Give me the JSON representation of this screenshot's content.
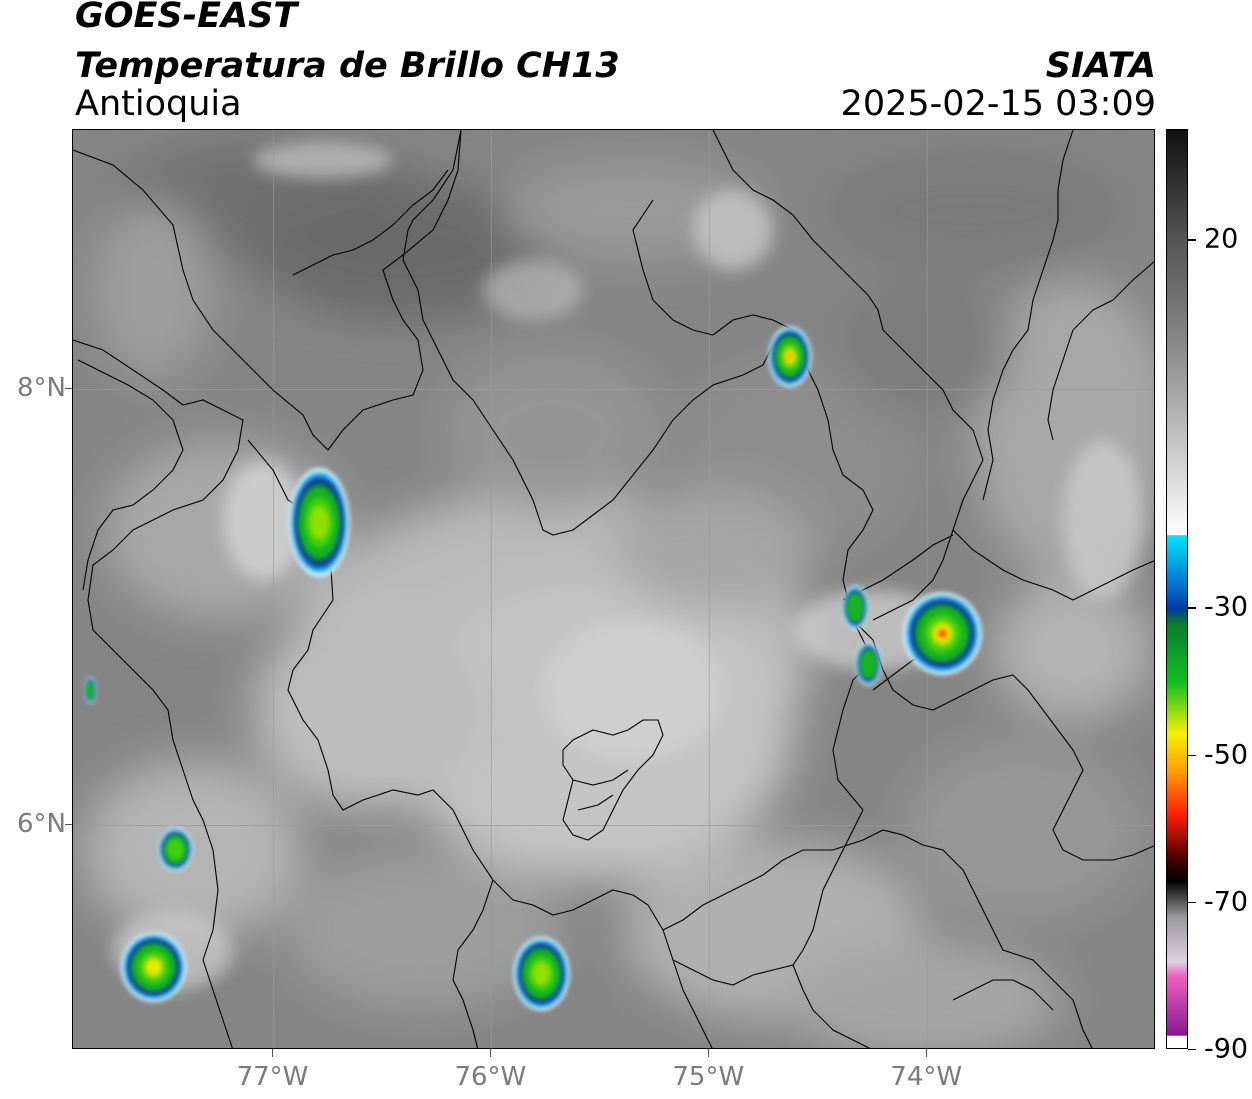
{
  "header": {
    "satellite": "GOES-EAST",
    "product": "Temperatura de Brillo CH13",
    "region": "Antioquia",
    "organization": "SIATA",
    "datetime": "2025-02-15 03:09"
  },
  "map": {
    "lat_labels": [
      {
        "id": "8n",
        "text": "8°N",
        "lat": 8
      },
      {
        "id": "6n",
        "text": "6°N",
        "lat": 6
      }
    ],
    "lon_labels": [
      {
        "id": "77w",
        "text": "77°W",
        "lon": -77
      },
      {
        "id": "76w",
        "text": "76°W",
        "lon": -76
      },
      {
        "id": "75w",
        "text": "75°W",
        "lon": -75
      },
      {
        "id": "74w",
        "text": "74°W",
        "lon": -74
      }
    ],
    "extent": {
      "lon_min": -77.92,
      "lon_max": -72.95,
      "lat_min": 4.97,
      "lat_max": 9.19
    },
    "storm_cells": [
      {
        "name": "cell-north-central",
        "lon": -74.63,
        "lat": 8.15,
        "rx": 0.1,
        "ry": 0.14,
        "min_temp": -52
      },
      {
        "name": "cell-west-urabá",
        "lon": -76.79,
        "lat": 7.39,
        "rx": 0.14,
        "ry": 0.25,
        "min_temp": -42
      },
      {
        "name": "cell-east-1",
        "lon": -74.33,
        "lat": 7.0,
        "rx": 0.06,
        "ry": 0.1,
        "min_temp": -35
      },
      {
        "name": "cell-east-2",
        "lon": -74.27,
        "lat": 6.74,
        "rx": 0.06,
        "ry": 0.1,
        "min_temp": -38
      },
      {
        "name": "cell-east-main",
        "lon": -73.93,
        "lat": 6.88,
        "rx": 0.18,
        "ry": 0.19,
        "min_temp": -60
      },
      {
        "name": "cell-southwest-1",
        "lon": -77.45,
        "lat": 5.89,
        "rx": 0.08,
        "ry": 0.1,
        "min_temp": -40
      },
      {
        "name": "cell-southwest-2",
        "lon": -77.55,
        "lat": 5.35,
        "rx": 0.15,
        "ry": 0.16,
        "min_temp": -48
      },
      {
        "name": "cell-south-central",
        "lon": -75.77,
        "lat": 5.32,
        "rx": 0.13,
        "ry": 0.17,
        "min_temp": -44
      },
      {
        "name": "cell-far-west",
        "lon": -77.84,
        "lat": 6.62,
        "rx": 0.03,
        "ry": 0.06,
        "min_temp": -30
      }
    ]
  },
  "colorbar": {
    "min": -90,
    "max": 35,
    "ticks": [
      {
        "id": "20",
        "text": "20",
        "value": 20
      },
      {
        "id": "m30",
        "text": "-30",
        "value": -30
      },
      {
        "id": "m50",
        "text": "-50",
        "value": -50
      },
      {
        "id": "m70",
        "text": "-70",
        "value": -70
      },
      {
        "id": "m90",
        "text": "-90",
        "value": -90
      }
    ],
    "colors": {
      "warm_top": "#111111",
      "gray_mid": "#8c8c8c",
      "white": "#ffffff",
      "cyan": "#00e5ff",
      "blue": "#003aa0",
      "green": "#10c020",
      "yellow": "#f5f000",
      "red": "#ff2000",
      "dark_red": "#4a0000",
      "black": "#000000",
      "pink": "#ee60c0",
      "purple": "#8a1890"
    }
  }
}
